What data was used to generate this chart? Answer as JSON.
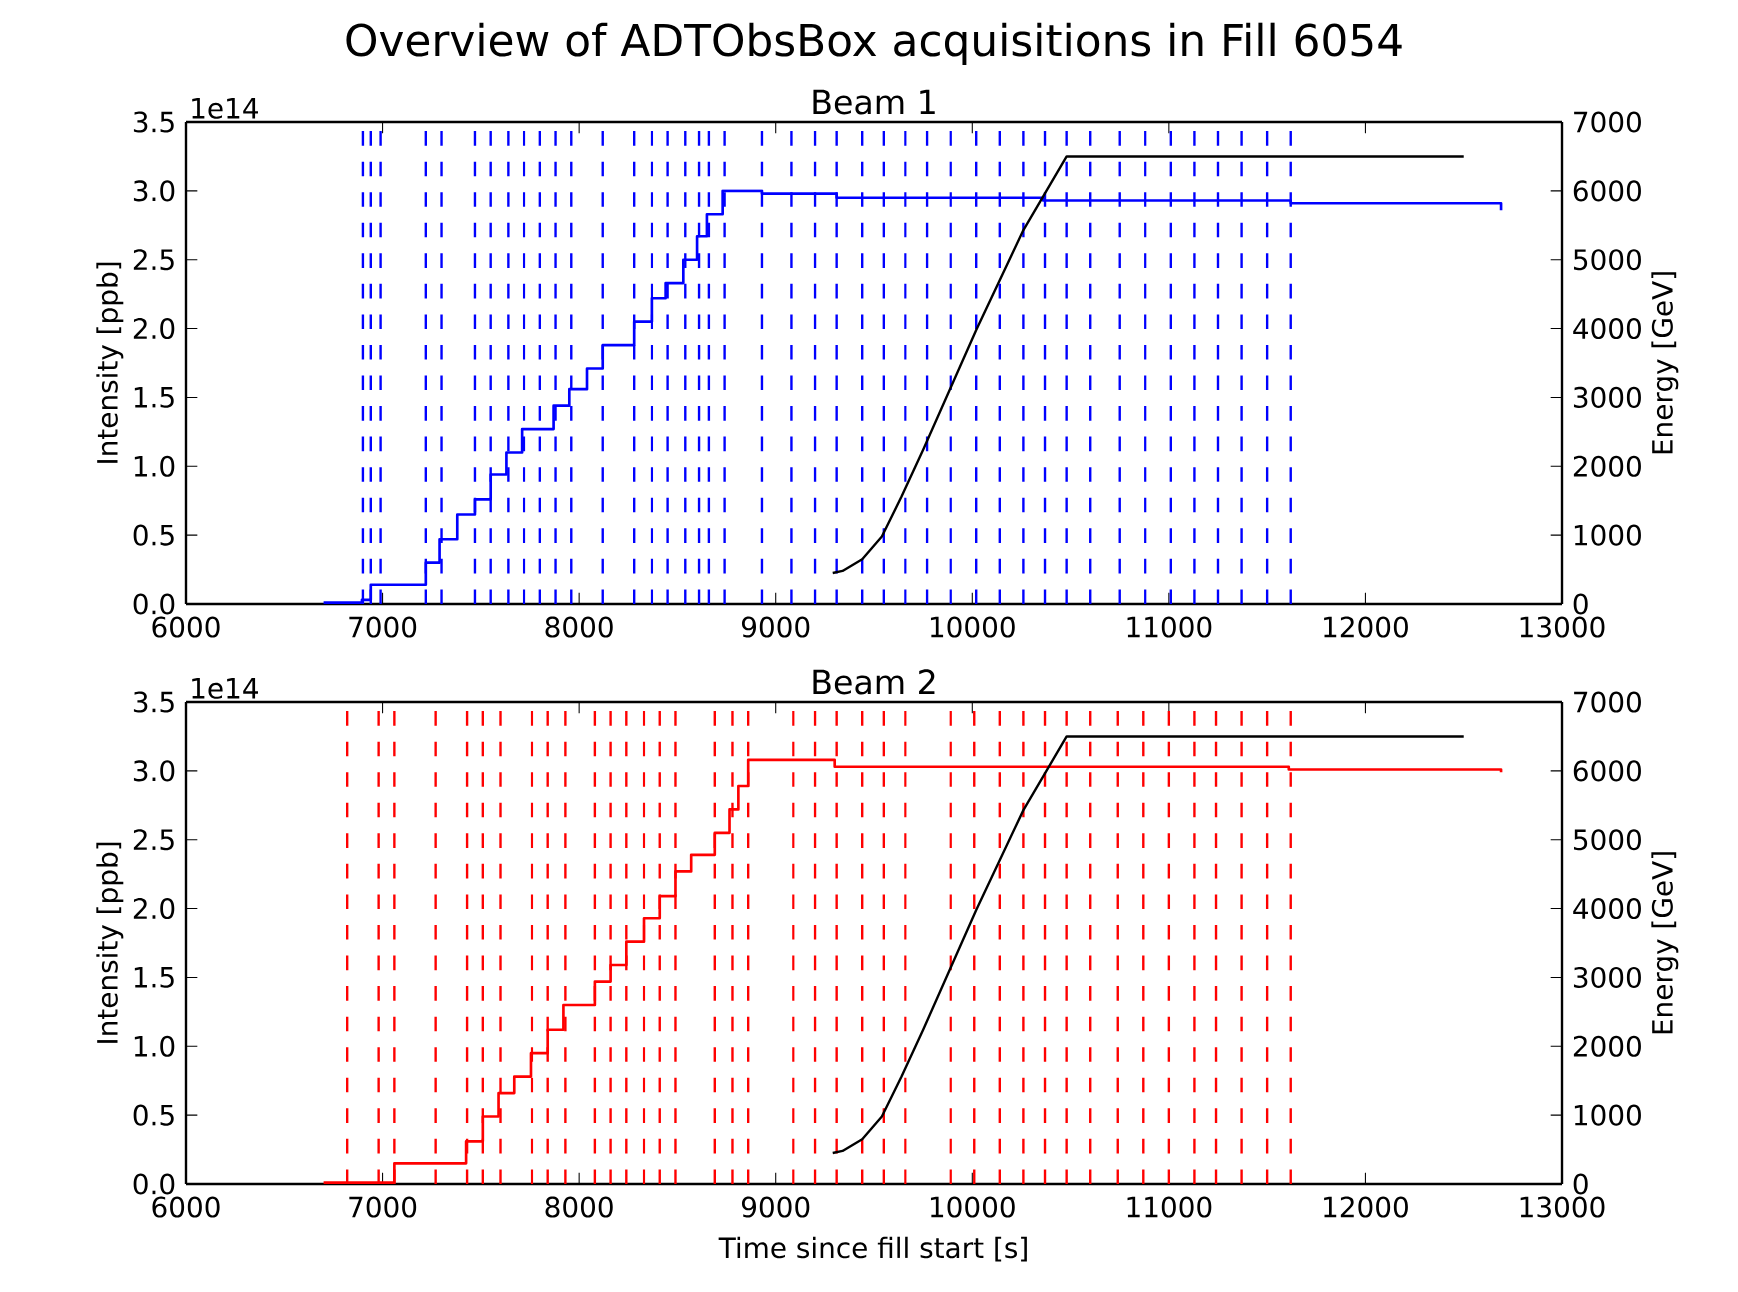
{
  "chart_data": [
    {
      "type": "step",
      "title": "Overview of ADTObsBox acquisitions in Fill 6054",
      "subtitle": "Beam 1",
      "ylabel": "Intensity [ppb]",
      "y2label": "Energy [GeV]",
      "annotations": [
        "1e14"
      ],
      "xlim": [
        6000,
        13000
      ],
      "xticks": [
        6000,
        7000,
        8000,
        9000,
        10000,
        11000,
        12000,
        13000
      ],
      "ylim": [
        0,
        3.5
      ],
      "yticks": [
        {
          "value": 0,
          "label": "0.0"
        },
        {
          "value": 0.5,
          "label": "0.5"
        },
        {
          "value": 1,
          "label": "1.0"
        },
        {
          "value": 1.5,
          "label": "1.5"
        },
        {
          "value": 2,
          "label": "2.0"
        },
        {
          "value": 2.5,
          "label": "2.5"
        },
        {
          "value": 3,
          "label": "3.0"
        },
        {
          "value": 3.5,
          "label": "3.5"
        }
      ],
      "y2lim": [
        0,
        7000
      ],
      "y2ticks": [
        0,
        1000,
        2000,
        3000,
        4000,
        5000,
        6000,
        7000
      ],
      "series": [
        {
          "color": "#0000ff",
          "x": [
            6700,
            6895,
            6940,
            7220,
            7290,
            7380,
            7470,
            7550,
            7630,
            7710,
            7870,
            7950,
            8040,
            8120,
            8280,
            8370,
            8440,
            8530,
            8600,
            8650,
            8730,
            8930,
            9310,
            10360,
            11620,
            12690
          ],
          "values": [
            0.01,
            0.03,
            0.14,
            0.3,
            0.47,
            0.65,
            0.76,
            0.94,
            1.1,
            1.27,
            1.44,
            1.56,
            1.71,
            1.88,
            2.05,
            2.22,
            2.33,
            2.5,
            2.67,
            2.83,
            3.0,
            2.98,
            2.95,
            2.93,
            2.91,
            2.86
          ]
        },
        {
          "type": "line",
          "axis": "y2",
          "color": "#000000",
          "x": [
            9290,
            9340,
            9440,
            9540,
            9640,
            9750,
            10020,
            10260,
            10480,
            12500
          ],
          "values": [
            450,
            480,
            650,
            980,
            1560,
            2240,
            3980,
            5430,
            6500,
            6500
          ]
        }
      ],
      "ref_lines": [
        {
          "axis": "x",
          "value": 6900,
          "color": "#0000ff",
          "line_style": "dashed"
        },
        {
          "axis": "x",
          "value": 6940,
          "color": "#0000ff",
          "line_style": "dashed"
        },
        {
          "axis": "x",
          "value": 6990,
          "color": "#0000ff",
          "line_style": "dashed"
        },
        {
          "axis": "x",
          "value": 7220,
          "color": "#0000ff",
          "line_style": "dashed"
        },
        {
          "axis": "x",
          "value": 7300,
          "color": "#0000ff",
          "line_style": "dashed"
        },
        {
          "axis": "x",
          "value": 7470,
          "color": "#0000ff",
          "line_style": "dashed"
        },
        {
          "axis": "x",
          "value": 7550,
          "color": "#0000ff",
          "line_style": "dashed"
        },
        {
          "axis": "x",
          "value": 7640,
          "color": "#0000ff",
          "line_style": "dashed"
        },
        {
          "axis": "x",
          "value": 7720,
          "color": "#0000ff",
          "line_style": "dashed"
        },
        {
          "axis": "x",
          "value": 7800,
          "color": "#0000ff",
          "line_style": "dashed"
        },
        {
          "axis": "x",
          "value": 7880,
          "color": "#0000ff",
          "line_style": "dashed"
        },
        {
          "axis": "x",
          "value": 7960,
          "color": "#0000ff",
          "line_style": "dashed"
        },
        {
          "axis": "x",
          "value": 8120,
          "color": "#0000ff",
          "line_style": "dashed"
        },
        {
          "axis": "x",
          "value": 8280,
          "color": "#0000ff",
          "line_style": "dashed"
        },
        {
          "axis": "x",
          "value": 8370,
          "color": "#0000ff",
          "line_style": "dashed"
        },
        {
          "axis": "x",
          "value": 8450,
          "color": "#0000ff",
          "line_style": "dashed"
        },
        {
          "axis": "x",
          "value": 8540,
          "color": "#0000ff",
          "line_style": "dashed"
        },
        {
          "axis": "x",
          "value": 8610,
          "color": "#0000ff",
          "line_style": "dashed"
        },
        {
          "axis": "x",
          "value": 8660,
          "color": "#0000ff",
          "line_style": "dashed"
        },
        {
          "axis": "x",
          "value": 8740,
          "color": "#0000ff",
          "line_style": "dashed"
        },
        {
          "axis": "x",
          "value": 8930,
          "color": "#0000ff",
          "line_style": "dashed"
        },
        {
          "axis": "x",
          "value": 9080,
          "color": "#0000ff",
          "line_style": "dashed"
        },
        {
          "axis": "x",
          "value": 9200,
          "color": "#0000ff",
          "line_style": "dashed"
        },
        {
          "axis": "x",
          "value": 9310,
          "color": "#0000ff",
          "line_style": "dashed"
        },
        {
          "axis": "x",
          "value": 9440,
          "color": "#0000ff",
          "line_style": "dashed"
        },
        {
          "axis": "x",
          "value": 9550,
          "color": "#0000ff",
          "line_style": "dashed"
        },
        {
          "axis": "x",
          "value": 9660,
          "color": "#0000ff",
          "line_style": "dashed"
        },
        {
          "axis": "x",
          "value": 9770,
          "color": "#0000ff",
          "line_style": "dashed"
        },
        {
          "axis": "x",
          "value": 9890,
          "color": "#0000ff",
          "line_style": "dashed"
        },
        {
          "axis": "x",
          "value": 10020,
          "color": "#0000ff",
          "line_style": "dashed"
        },
        {
          "axis": "x",
          "value": 10140,
          "color": "#0000ff",
          "line_style": "dashed"
        },
        {
          "axis": "x",
          "value": 10260,
          "color": "#0000ff",
          "line_style": "dashed"
        },
        {
          "axis": "x",
          "value": 10370,
          "color": "#0000ff",
          "line_style": "dashed"
        },
        {
          "axis": "x",
          "value": 10480,
          "color": "#0000ff",
          "line_style": "dashed"
        },
        {
          "axis": "x",
          "value": 10600,
          "color": "#0000ff",
          "line_style": "dashed"
        },
        {
          "axis": "x",
          "value": 10750,
          "color": "#0000ff",
          "line_style": "dashed"
        },
        {
          "axis": "x",
          "value": 10880,
          "color": "#0000ff",
          "line_style": "dashed"
        },
        {
          "axis": "x",
          "value": 11010,
          "color": "#0000ff",
          "line_style": "dashed"
        },
        {
          "axis": "x",
          "value": 11130,
          "color": "#0000ff",
          "line_style": "dashed"
        },
        {
          "axis": "x",
          "value": 11250,
          "color": "#0000ff",
          "line_style": "dashed"
        },
        {
          "axis": "x",
          "value": 11370,
          "color": "#0000ff",
          "line_style": "dashed"
        },
        {
          "axis": "x",
          "value": 11500,
          "color": "#0000ff",
          "line_style": "dashed"
        },
        {
          "axis": "x",
          "value": 11620,
          "color": "#0000ff",
          "line_style": "dashed"
        }
      ]
    },
    {
      "type": "step",
      "title": "Beam 2",
      "xlabel": "Time since fill start [s]",
      "ylabel": "Intensity [ppb]",
      "y2label": "Energy [GeV]",
      "annotations": [
        "1e14"
      ],
      "xlim": [
        6000,
        13000
      ],
      "xticks": [
        6000,
        7000,
        8000,
        9000,
        10000,
        11000,
        12000,
        13000
      ],
      "ylim": [
        0,
        3.5
      ],
      "yticks": [
        {
          "value": 0,
          "label": "0.0"
        },
        {
          "value": 0.5,
          "label": "0.5"
        },
        {
          "value": 1,
          "label": "1.0"
        },
        {
          "value": 1.5,
          "label": "1.5"
        },
        {
          "value": 2,
          "label": "2.0"
        },
        {
          "value": 2.5,
          "label": "2.5"
        },
        {
          "value": 3,
          "label": "3.0"
        },
        {
          "value": 3.5,
          "label": "3.5"
        }
      ],
      "y2lim": [
        0,
        7000
      ],
      "y2ticks": [
        0,
        1000,
        2000,
        3000,
        4000,
        5000,
        6000,
        7000
      ],
      "series": [
        {
          "color": "#ff0000",
          "x": [
            6700,
            7060,
            7425,
            7510,
            7590,
            7670,
            7755,
            7840,
            7920,
            8080,
            8160,
            8240,
            8330,
            8410,
            8490,
            8570,
            8690,
            8765,
            8810,
            8860,
            9300,
            11610,
            12690
          ],
          "values": [
            0.01,
            0.15,
            0.31,
            0.49,
            0.66,
            0.78,
            0.95,
            1.12,
            1.3,
            1.47,
            1.59,
            1.76,
            1.93,
            2.09,
            2.27,
            2.39,
            2.55,
            2.72,
            2.89,
            3.08,
            3.03,
            3.01,
            2.99
          ]
        },
        {
          "type": "line",
          "axis": "y2",
          "color": "#000000",
          "x": [
            9290,
            9340,
            9440,
            9540,
            9640,
            9750,
            10020,
            10260,
            10480,
            12500
          ],
          "values": [
            450,
            480,
            650,
            980,
            1560,
            2240,
            3980,
            5430,
            6500,
            6500
          ]
        }
      ],
      "ref_lines": [
        {
          "axis": "x",
          "value": 6820,
          "color": "#ff0000",
          "line_style": "dashed"
        },
        {
          "axis": "x",
          "value": 6980,
          "color": "#ff0000",
          "line_style": "dashed"
        },
        {
          "axis": "x",
          "value": 7060,
          "color": "#ff0000",
          "line_style": "dashed"
        },
        {
          "axis": "x",
          "value": 7270,
          "color": "#ff0000",
          "line_style": "dashed"
        },
        {
          "axis": "x",
          "value": 7430,
          "color": "#ff0000",
          "line_style": "dashed"
        },
        {
          "axis": "x",
          "value": 7510,
          "color": "#ff0000",
          "line_style": "dashed"
        },
        {
          "axis": "x",
          "value": 7600,
          "color": "#ff0000",
          "line_style": "dashed"
        },
        {
          "axis": "x",
          "value": 7760,
          "color": "#ff0000",
          "line_style": "dashed"
        },
        {
          "axis": "x",
          "value": 7840,
          "color": "#ff0000",
          "line_style": "dashed"
        },
        {
          "axis": "x",
          "value": 7930,
          "color": "#ff0000",
          "line_style": "dashed"
        },
        {
          "axis": "x",
          "value": 8080,
          "color": "#ff0000",
          "line_style": "dashed"
        },
        {
          "axis": "x",
          "value": 8160,
          "color": "#ff0000",
          "line_style": "dashed"
        },
        {
          "axis": "x",
          "value": 8240,
          "color": "#ff0000",
          "line_style": "dashed"
        },
        {
          "axis": "x",
          "value": 8330,
          "color": "#ff0000",
          "line_style": "dashed"
        },
        {
          "axis": "x",
          "value": 8410,
          "color": "#ff0000",
          "line_style": "dashed"
        },
        {
          "axis": "x",
          "value": 8490,
          "color": "#ff0000",
          "line_style": "dashed"
        },
        {
          "axis": "x",
          "value": 8690,
          "color": "#ff0000",
          "line_style": "dashed"
        },
        {
          "axis": "x",
          "value": 8780,
          "color": "#ff0000",
          "line_style": "dashed"
        },
        {
          "axis": "x",
          "value": 8860,
          "color": "#ff0000",
          "line_style": "dashed"
        },
        {
          "axis": "x",
          "value": 9090,
          "color": "#ff0000",
          "line_style": "dashed"
        },
        {
          "axis": "x",
          "value": 9200,
          "color": "#ff0000",
          "line_style": "dashed"
        },
        {
          "axis": "x",
          "value": 9310,
          "color": "#ff0000",
          "line_style": "dashed"
        },
        {
          "axis": "x",
          "value": 9440,
          "color": "#ff0000",
          "line_style": "dashed"
        },
        {
          "axis": "x",
          "value": 9550,
          "color": "#ff0000",
          "line_style": "dashed"
        },
        {
          "axis": "x",
          "value": 9660,
          "color": "#ff0000",
          "line_style": "dashed"
        },
        {
          "axis": "x",
          "value": 9890,
          "color": "#ff0000",
          "line_style": "dashed"
        },
        {
          "axis": "x",
          "value": 10010,
          "color": "#ff0000",
          "line_style": "dashed"
        },
        {
          "axis": "x",
          "value": 10140,
          "color": "#ff0000",
          "line_style": "dashed"
        },
        {
          "axis": "x",
          "value": 10260,
          "color": "#ff0000",
          "line_style": "dashed"
        },
        {
          "axis": "x",
          "value": 10370,
          "color": "#ff0000",
          "line_style": "dashed"
        },
        {
          "axis": "x",
          "value": 10480,
          "color": "#ff0000",
          "line_style": "dashed"
        },
        {
          "axis": "x",
          "value": 10600,
          "color": "#ff0000",
          "line_style": "dashed"
        },
        {
          "axis": "x",
          "value": 10740,
          "color": "#ff0000",
          "line_style": "dashed"
        },
        {
          "axis": "x",
          "value": 10870,
          "color": "#ff0000",
          "line_style": "dashed"
        },
        {
          "axis": "x",
          "value": 11000,
          "color": "#ff0000",
          "line_style": "dashed"
        },
        {
          "axis": "x",
          "value": 11130,
          "color": "#ff0000",
          "line_style": "dashed"
        },
        {
          "axis": "x",
          "value": 11240,
          "color": "#ff0000",
          "line_style": "dashed"
        },
        {
          "axis": "x",
          "value": 11370,
          "color": "#ff0000",
          "line_style": "dashed"
        },
        {
          "axis": "x",
          "value": 11500,
          "color": "#ff0000",
          "line_style": "dashed"
        },
        {
          "axis": "x",
          "value": 11620,
          "color": "#ff0000",
          "line_style": "dashed"
        }
      ]
    }
  ]
}
